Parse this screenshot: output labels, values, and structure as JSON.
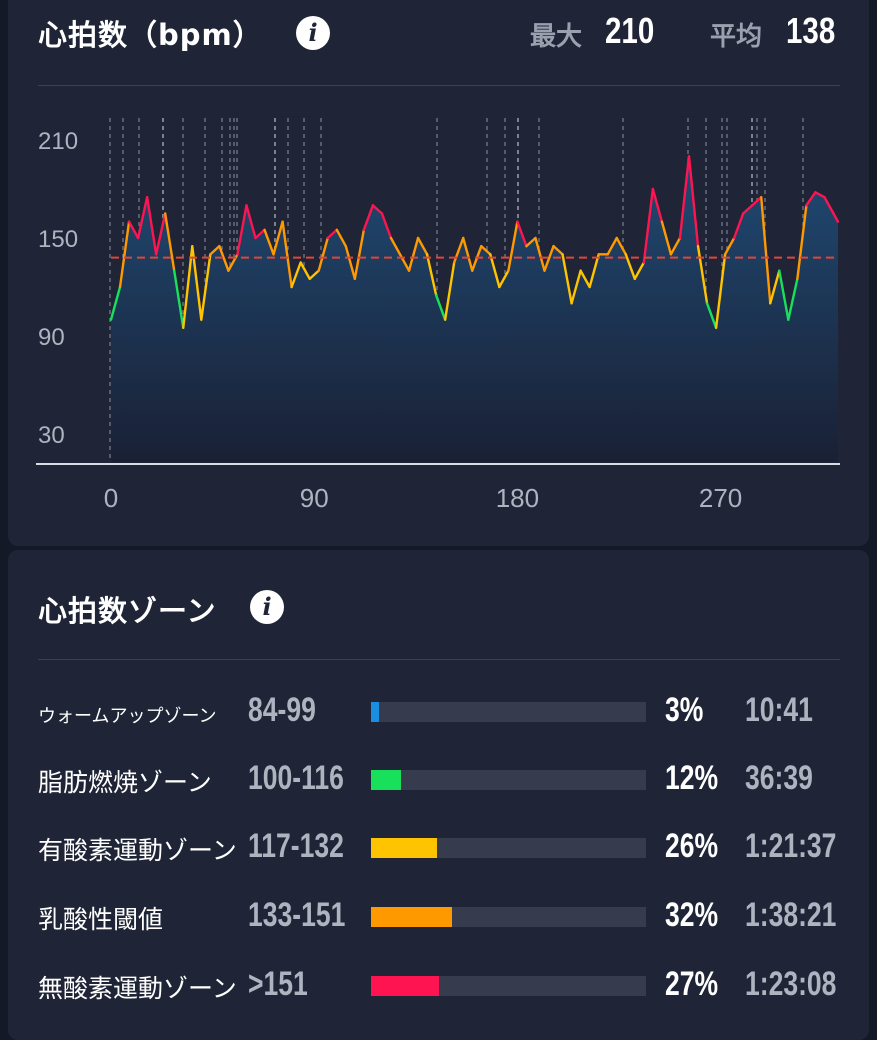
{
  "heart_rate": {
    "title": "心拍数（bpm）",
    "info_icon": "info-icon",
    "max_label": "最大",
    "max_value": "210",
    "avg_label": "平均",
    "avg_value": "138"
  },
  "chart_data": {
    "type": "area",
    "y_ticks": [
      "210",
      "150",
      "90",
      "30"
    ],
    "x_ticks": [
      "0",
      "90",
      "180",
      "270"
    ],
    "ylim": [
      30,
      210
    ],
    "xlim": [
      0,
      322
    ],
    "average_line": 138,
    "grid": false,
    "zone_colors": {
      "warmup": "#1a8fe0",
      "fatburn": "#19e05a",
      "aerobic": "#ffc400",
      "threshold": "#ff9900",
      "anaerobic": "#ff1452"
    },
    "series": [
      {
        "x": [
          0,
          4,
          8,
          12,
          16,
          20,
          24,
          28,
          32,
          36,
          40,
          44,
          48,
          52,
          56,
          60,
          64,
          68,
          72,
          76,
          80,
          84,
          88,
          92,
          96,
          100,
          104,
          108,
          112,
          116,
          120,
          124,
          128,
          132,
          136,
          140,
          144,
          148,
          152,
          156,
          160,
          164,
          168,
          172,
          176,
          180,
          184,
          188,
          192,
          196,
          200,
          204,
          208,
          212,
          216,
          220,
          224,
          228,
          232,
          236,
          240,
          244,
          248,
          252,
          256,
          260,
          264,
          268,
          272,
          276,
          280,
          284,
          288,
          292,
          296,
          300,
          304,
          308,
          312,
          316,
          320,
          322
        ],
        "y": [
          100,
          120,
          160,
          150,
          175,
          140,
          165,
          130,
          95,
          145,
          100,
          140,
          145,
          130,
          140,
          170,
          150,
          155,
          140,
          160,
          120,
          135,
          125,
          130,
          150,
          155,
          145,
          125,
          155,
          170,
          165,
          150,
          140,
          130,
          150,
          140,
          115,
          100,
          135,
          150,
          130,
          145,
          140,
          120,
          130,
          160,
          145,
          150,
          130,
          145,
          140,
          110,
          130,
          120,
          140,
          140,
          150,
          140,
          125,
          135,
          180,
          160,
          140,
          150,
          200,
          145,
          110,
          95,
          140,
          150,
          165,
          170,
          175,
          110,
          130,
          100,
          125,
          170,
          178,
          175,
          165,
          160
        ]
      }
    ]
  },
  "zones": {
    "title": "心拍数ゾーン",
    "info_icon": "info-icon",
    "rows": [
      {
        "name": "ウォームアップゾーン",
        "range": "84-99",
        "percent": "3%",
        "fraction": 0.03,
        "time": "10:41",
        "color": "#1a8fe0"
      },
      {
        "name": "脂肪燃焼ゾーン",
        "range": "100-116",
        "percent": "12%",
        "fraction": 0.12,
        "time": "36:39",
        "color": "#19e05a"
      },
      {
        "name": "有酸素運動ゾーン",
        "range": "117-132",
        "percent": "26%",
        "fraction": 0.26,
        "time": "1:21:37",
        "color": "#ffc400"
      },
      {
        "name": "乳酸性閾値",
        "range": "133-151",
        "percent": "32%",
        "fraction": 0.32,
        "time": "1:38:21",
        "color": "#ff9900"
      },
      {
        "name": "無酸素運動ゾーン",
        "range": ">151",
        "percent": "27%",
        "fraction": 0.27,
        "time": "1:23:08",
        "color": "#ff1452"
      }
    ]
  }
}
